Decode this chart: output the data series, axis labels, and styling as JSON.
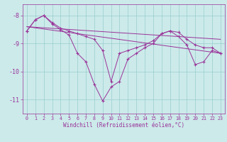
{
  "x": [
    0,
    1,
    2,
    3,
    4,
    5,
    6,
    7,
    8,
    9,
    10,
    11,
    12,
    13,
    14,
    15,
    16,
    17,
    18,
    19,
    20,
    21,
    22,
    23
  ],
  "line_main": [
    -8.55,
    -8.15,
    -8.0,
    -8.25,
    -8.45,
    -8.55,
    -8.65,
    -8.75,
    -8.85,
    -9.25,
    -10.35,
    -9.35,
    -9.25,
    -9.15,
    -9.05,
    -8.9,
    -8.65,
    -8.55,
    -8.6,
    -8.85,
    -9.05,
    -9.15,
    -9.15,
    -9.35
  ],
  "line_zig": [
    -8.55,
    -8.15,
    -8.0,
    -8.3,
    -8.5,
    -8.7,
    -9.35,
    -9.65,
    -10.45,
    -11.05,
    -10.55,
    -10.35,
    -9.55,
    -9.35,
    -9.15,
    -9.0,
    -8.65,
    -8.55,
    -8.75,
    -9.05,
    -9.75,
    -9.65,
    -9.25,
    -9.35
  ],
  "trend1_x": [
    0,
    23
  ],
  "trend1_y": [
    -8.4,
    -8.85
  ],
  "trend2_x": [
    0,
    23
  ],
  "trend2_y": [
    -8.4,
    -9.35
  ],
  "line_color": "#993399",
  "bg_color": "#cceaea",
  "grid_color": "#99cccc",
  "text_color": "#993399",
  "xlabel": "Windchill (Refroidissement éolien,°C)",
  "ylim": [
    -11.5,
    -7.6
  ],
  "xlim": [
    -0.5,
    23.5
  ],
  "yticks": [
    -11,
    -10,
    -9,
    -8
  ],
  "xticks": [
    0,
    1,
    2,
    3,
    4,
    5,
    6,
    7,
    8,
    9,
    10,
    11,
    12,
    13,
    14,
    15,
    16,
    17,
    18,
    19,
    20,
    21,
    22,
    23
  ]
}
